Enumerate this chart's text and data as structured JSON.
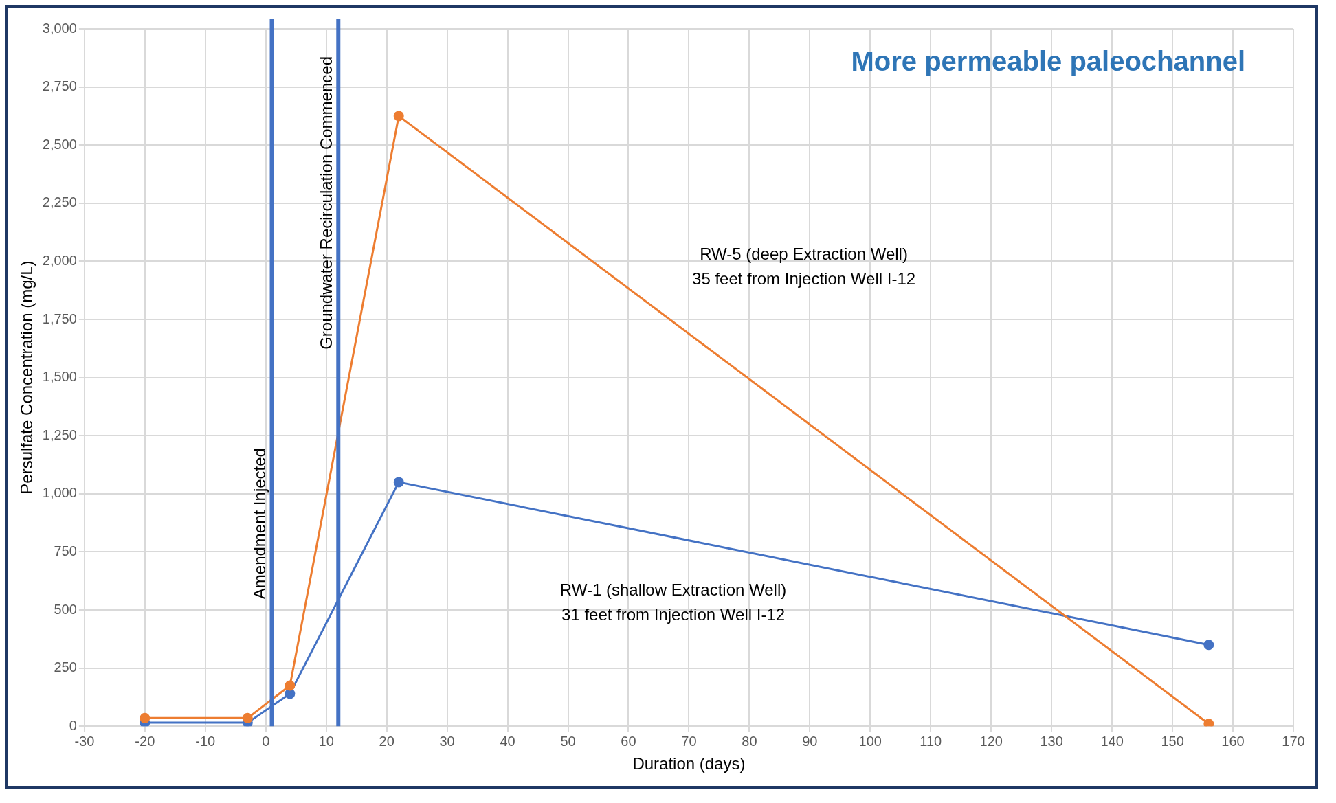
{
  "chart_data": {
    "type": "line",
    "title": "More permeable paleochannel",
    "xlabel": "Duration (days)",
    "ylabel": "Persulfate Concentration (mg/L)",
    "xlim": [
      -30,
      170
    ],
    "xticks": [
      -30,
      -20,
      -10,
      0,
      10,
      20,
      30,
      40,
      50,
      60,
      70,
      80,
      90,
      100,
      110,
      120,
      130,
      140,
      150,
      160,
      170
    ],
    "ylim": [
      0,
      3000
    ],
    "yticks": [
      {
        "value": 0,
        "label": "0"
      },
      {
        "value": 250,
        "label": "250"
      },
      {
        "value": 500,
        "label": "500"
      },
      {
        "value": 750,
        "label": "750"
      },
      {
        "value": 1000,
        "label": "1,000"
      },
      {
        "value": 1250,
        "label": "1,250"
      },
      {
        "value": 1500,
        "label": "1,500"
      },
      {
        "value": 1750,
        "label": "1,750"
      },
      {
        "value": 2000,
        "label": "2,000"
      },
      {
        "value": 2250,
        "label": "2,250"
      },
      {
        "value": 2500,
        "label": "2,500"
      },
      {
        "value": 2750,
        "label": "2,750"
      },
      {
        "value": 3000,
        "label": "3,000"
      }
    ],
    "grid": true,
    "legend": false,
    "marker": "circle",
    "line_style": "solid",
    "series": [
      {
        "name": "RW-5 (deep Extraction Well)\n35 feet from Injection Well I-12",
        "color": "#ed7d31",
        "x": [
          -20,
          -3,
          4,
          22,
          156
        ],
        "values": [
          35,
          35,
          175,
          2625,
          10
        ]
      },
      {
        "name": "RW-1 (shallow Extraction Well)\n31 feet from Injection Well I-12",
        "color": "#4472c4",
        "x": [
          -20,
          -3,
          4,
          22,
          156
        ],
        "values": [
          15,
          15,
          140,
          1050,
          350
        ]
      }
    ],
    "ref_lines": [
      {
        "axis": "x",
        "value": 1,
        "label": "Amendment Injected",
        "color": "#4472c4"
      },
      {
        "axis": "x",
        "value": 12,
        "label": "Groundwater Recirculation Commenced",
        "color": "#4472c4"
      }
    ]
  }
}
